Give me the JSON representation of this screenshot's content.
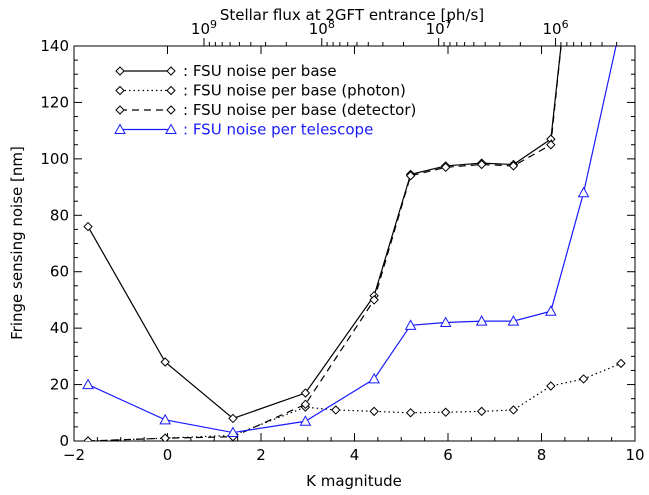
{
  "chart_data": {
    "type": "line",
    "xlabel": "K magnitude",
    "ylabel": "Fringe sensing noise [nm]",
    "top_axis_label": "Stellar flux at 2GFT entrance [ph/s]",
    "xlim": [
      -2,
      10
    ],
    "ylim": [
      0,
      140
    ],
    "x_ticks": [
      -2,
      0,
      2,
      4,
      6,
      8,
      10
    ],
    "y_ticks": [
      0,
      20,
      40,
      60,
      80,
      100,
      120,
      140
    ],
    "x_tick_labels": [
      "−2",
      "0",
      "2",
      "4",
      "6",
      "8",
      "10"
    ],
    "y_tick_labels": [
      "0",
      "20",
      "40",
      "60",
      "80",
      "100",
      "120",
      "140"
    ],
    "top_ticks": [
      {
        "k": 0.78,
        "label": "10^9"
      },
      {
        "k": 3.3,
        "label": "10^8"
      },
      {
        "k": 5.8,
        "label": "10^7"
      },
      {
        "k": 8.3,
        "label": "10^6"
      }
    ],
    "grid": false,
    "legend_position": "top-left",
    "series": [
      {
        "name": ": FSU noise per base",
        "color": "#000000",
        "style": "solid",
        "marker": "diamond",
        "x": [
          -1.7,
          -0.05,
          1.4,
          2.95,
          4.42,
          5.2,
          5.95,
          6.72,
          7.4,
          8.2,
          8.45
        ],
        "y": [
          76,
          28,
          8,
          17,
          51.5,
          94.5,
          97.5,
          98.5,
          98,
          107,
          145
        ]
      },
      {
        "name": ": FSU noise per base (photon)",
        "color": "#000000",
        "style": "dotted",
        "marker": "diamond",
        "x": [
          -1.7,
          -0.05,
          1.4,
          2.95,
          3.6,
          4.42,
          5.2,
          5.95,
          6.72,
          7.4,
          8.2,
          8.9,
          9.7
        ],
        "y": [
          0,
          1,
          2,
          12,
          11,
          10.5,
          10,
          10.2,
          10.5,
          11,
          19.5,
          22,
          27.5
        ]
      },
      {
        "name": ": FSU noise per base (detector)",
        "color": "#000000",
        "style": "dashed",
        "marker": "diamond",
        "x": [
          -1.7,
          -0.05,
          1.4,
          2.95,
          4.42,
          5.2,
          5.95,
          6.72,
          7.4,
          8.2,
          8.45
        ],
        "y": [
          0,
          1,
          1.5,
          13,
          50,
          94,
          97,
          98,
          97.5,
          105,
          145
        ]
      },
      {
        "name": ": FSU noise per telescope",
        "color": "#1a1aff",
        "style": "solid",
        "marker": "triangle",
        "x": [
          -1.7,
          -0.05,
          1.4,
          2.95,
          4.42,
          5.2,
          5.95,
          6.72,
          7.4,
          8.2,
          8.9,
          9.7
        ],
        "y": [
          20,
          7.5,
          3,
          7,
          22,
          41,
          42,
          42.5,
          42.5,
          46,
          88,
          148
        ]
      }
    ]
  }
}
